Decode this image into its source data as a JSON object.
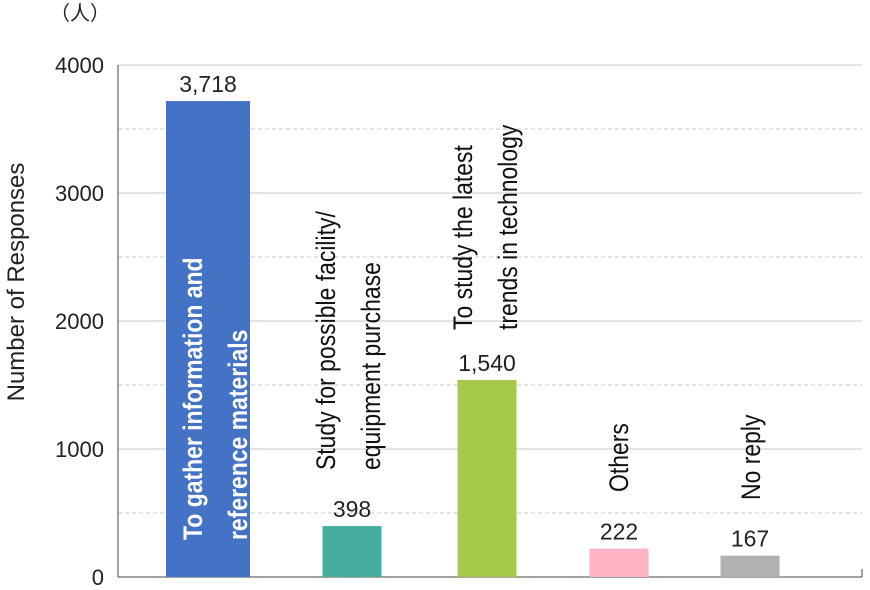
{
  "chart_data": {
    "type": "bar",
    "unit_label": "（人）",
    "y_label": "Number of Responses",
    "categories": [
      [
        "To gather information and",
        "reference materials"
      ],
      [
        "Study for possible facility/",
        "equipment purchase"
      ],
      [
        "To study the latest",
        "trends in technology"
      ],
      [
        "Others"
      ],
      [
        "No reply"
      ]
    ],
    "values": [
      3718,
      398,
      1540,
      222,
      167
    ],
    "value_labels": [
      "3,718",
      "398",
      "1,540",
      "222",
      "167"
    ],
    "colors": [
      "#4472c4",
      "#45ae9e",
      "#a6c94b",
      "#ffb4c5",
      "#b1b1b1"
    ],
    "ylim": [
      0,
      4000
    ],
    "yticks": [
      0,
      1000,
      2000,
      3000,
      4000
    ],
    "minor_yticks": [
      500,
      1500,
      2500,
      3500
    ],
    "grid": true
  }
}
